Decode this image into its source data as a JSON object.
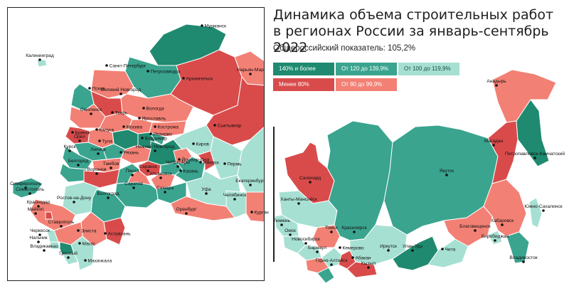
{
  "title_line1": "Динамика объема строительных работ",
  "title_line2": "в регионах России за январь-сентябрь 2022",
  "subtitle": "Общероссийский показатель: 105,2%",
  "colors": {
    "c140": "#1f8a70",
    "c120": "#3aa48f",
    "c100": "#a6e0d2",
    "c80": "#f28074",
    "cLow": "#d94b4b"
  },
  "legend": [
    {
      "label": "140% и более",
      "color": "#1f8a70",
      "text_color": "#ffffff"
    },
    {
      "label": "От 120 до 139,9%",
      "color": "#3aa48f",
      "text_color": "#ffffff"
    },
    {
      "label": "От 100 до 119,9%",
      "color": "#a6e0d2",
      "text_color": "#1e4d44"
    },
    {
      "label": "Менее 80%",
      "color": "#d94b4b",
      "text_color": "#ffffff"
    },
    {
      "label": "От 80 до 99,9%",
      "color": "#f28074",
      "text_color": "#ffffff"
    }
  ],
  "cities": [
    "Мурманск",
    "Калининград",
    "Санкт-Петербург",
    "Петрозаводск",
    "Архангельск",
    "Нарьян-Мар",
    "Псков",
    "Великий Новгород",
    "Вологда",
    "Смоленск",
    "Тверь",
    "Ярославль",
    "Кострома",
    "Брянск",
    "Калуга",
    "Москва",
    "Владимир",
    "Иваново",
    "Сыктывкар",
    "Орёл",
    "Тула",
    "Курск",
    "Липецк",
    "Рязань",
    "Нижний Новгород",
    "Киров",
    "Йошкар-Ола",
    "Белгород",
    "Тамбов",
    "Саранск",
    "Чебоксары",
    "Казань",
    "Ижевск",
    "Пермь",
    "Воронеж",
    "Пенза",
    "Ульяновск",
    "Екатеринбург",
    "Симферополь",
    "Севастополь",
    "Саратов",
    "Самара",
    "Уфа",
    "Челябинск",
    "Ростов-на-Дону",
    "Волгоград",
    "Оренбург",
    "Курган",
    "Краснодар",
    "Майкоп",
    "Ставрополь",
    "Элиста",
    "Астрахань",
    "Черкесск",
    "Нальчик",
    "Магас",
    "Владикавказ",
    "Грозный",
    "Махачкала",
    "Салехард",
    "Ханты-Мансийск",
    "Тюмень",
    "Омск",
    "Томск",
    "Новосибирск",
    "Кемерово",
    "Красноярск",
    "Барнаул",
    "Абакан",
    "Горно-Алтайск",
    "Кызыл",
    "Иркутск",
    "Улан-Удэ",
    "Чита",
    "Якутск",
    "Магадан",
    "Анадырь",
    "Петропавловск-Камчатский",
    "Благовещенск",
    "Биробиджан",
    "Хабаровск",
    "Южно-Сахалинск",
    "Владивосток"
  ]
}
